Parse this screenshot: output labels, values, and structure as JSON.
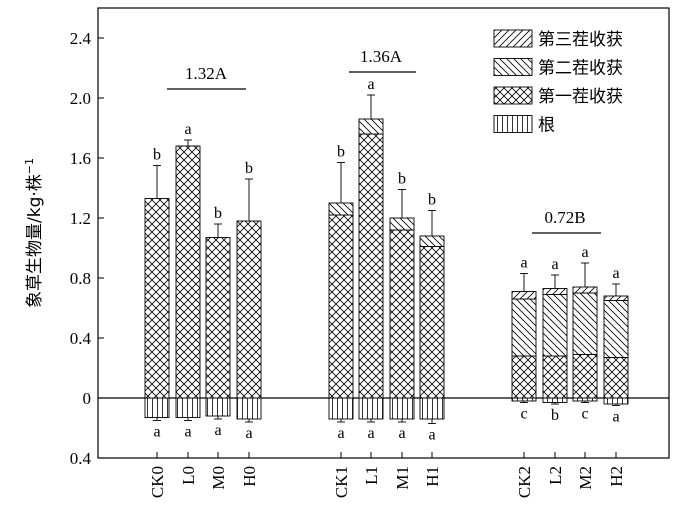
{
  "chart_data": {
    "type": "bar",
    "stacked": true,
    "ylabel": "象草生物量/kg·株",
    "ylabel_superscript": "−1",
    "ylim": [
      -0.4,
      2.6
    ],
    "yticks": [
      -0.4,
      0,
      0.4,
      0.8,
      1.2,
      1.6,
      2.0,
      2.4
    ],
    "ytick_labels": [
      "0.4",
      "0",
      "0.4",
      "0.8",
      "1.2",
      "1.6",
      "2.0",
      "2.4"
    ],
    "categories": [
      "CK0",
      "L0",
      "M0",
      "H0",
      "CK1",
      "L1",
      "M1",
      "H1",
      "CK2",
      "L2",
      "M2",
      "H2"
    ],
    "groups": [
      {
        "members": [
          "CK0",
          "L0",
          "M0",
          "H0"
        ],
        "label": "1.32A"
      },
      {
        "members": [
          "CK1",
          "L1",
          "M1",
          "H1"
        ],
        "label": "1.36A"
      },
      {
        "members": [
          "CK2",
          "L2",
          "M2",
          "H2"
        ],
        "label": "0.72B"
      }
    ],
    "series": [
      {
        "name": "第三茬收获",
        "pattern": "diag-up",
        "values": [
          0,
          0,
          0,
          0,
          0,
          0,
          0,
          0,
          0.05,
          0.04,
          0.04,
          0.03
        ]
      },
      {
        "name": "第二茬收获",
        "pattern": "diag-down",
        "values": [
          0,
          0,
          0,
          0,
          0.08,
          0.1,
          0.08,
          0.07,
          0.38,
          0.41,
          0.41,
          0.38
        ]
      },
      {
        "name": "第一茬收获",
        "pattern": "crosshatch",
        "values": [
          1.33,
          1.68,
          1.07,
          1.18,
          1.22,
          1.76,
          1.12,
          1.01,
          0.28,
          0.28,
          0.29,
          0.27
        ]
      },
      {
        "name": "根",
        "pattern": "vertical",
        "values": [
          -0.13,
          -0.13,
          -0.12,
          -0.14,
          -0.14,
          -0.14,
          -0.14,
          -0.14,
          -0.02,
          -0.03,
          -0.02,
          -0.04
        ]
      }
    ],
    "error_top": [
      1.55,
      1.72,
      1.16,
      1.46,
      1.57,
      2.02,
      1.39,
      1.25,
      0.83,
      0.82,
      0.9,
      0.76
    ],
    "error_bottom": [
      -0.15,
      -0.15,
      -0.14,
      -0.16,
      -0.16,
      -0.16,
      -0.16,
      -0.17,
      -0.03,
      -0.04,
      -0.03,
      -0.05
    ],
    "letters_top": [
      "b",
      "a",
      "b",
      "b",
      "b",
      "a",
      "b",
      "b",
      "a",
      "a",
      "a",
      "a"
    ],
    "letters_bottom": [
      "a",
      "a",
      "a",
      "a",
      "a",
      "a",
      "a",
      "a",
      "c",
      "b",
      "c",
      "a"
    ],
    "legend_position": "top-right"
  }
}
